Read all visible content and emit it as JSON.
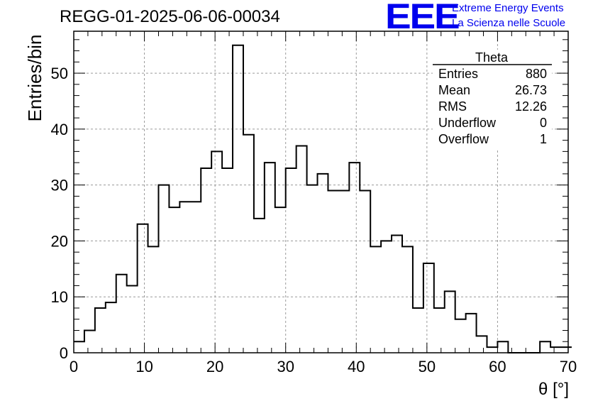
{
  "header": {
    "run_id": "REGG-01-2025-06-06-00034",
    "logo_text": "EEE",
    "logo_line1": "Extreme Energy Events",
    "logo_line2": "La Scienza nelle Scuole"
  },
  "stats_box": {
    "title": "Theta",
    "rows": [
      {
        "label": "Entries",
        "value": "880"
      },
      {
        "label": "Mean",
        "value": "26.73"
      },
      {
        "label": "RMS",
        "value": "12.26"
      },
      {
        "label": "Underflow",
        "value": "0"
      },
      {
        "label": "Overflow",
        "value": "1"
      }
    ]
  },
  "chart_data": {
    "type": "bar",
    "style": "step-histogram",
    "title": "REGG-01-2025-06-06-00034",
    "xlabel": "θ [°]",
    "ylabel": "Entries/bin",
    "xlim": [
      0,
      70
    ],
    "ylim": [
      0,
      57.5
    ],
    "grid": true,
    "bin_width": 1.5,
    "bin_edges_start": 0,
    "values": [
      2,
      4,
      8,
      9,
      14,
      12,
      23,
      19,
      30,
      26,
      27,
      27,
      33,
      36,
      33,
      55,
      39,
      24,
      34,
      26,
      33,
      37,
      30,
      32,
      29,
      29,
      34,
      29,
      19,
      20,
      21,
      19,
      8,
      16,
      8,
      11,
      6,
      7,
      3,
      1,
      2,
      0,
      0,
      0,
      2,
      1,
      1
    ],
    "x_ticks": [
      0,
      10,
      20,
      30,
      40,
      50,
      60,
      70
    ],
    "y_ticks": [
      0,
      10,
      20,
      30,
      40,
      50
    ]
  }
}
